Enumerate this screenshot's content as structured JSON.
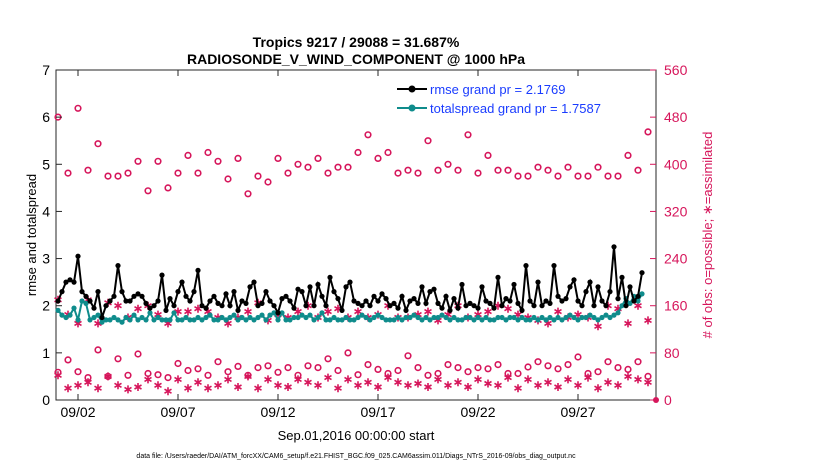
{
  "chart_data": {
    "type": "line",
    "title": "Tropics 9217 / 29088 = 31.687%",
    "subtitle": "RADIOSONDE_V_WIND_COMPONENT @ 1000 hPa",
    "xlabel": "Sep.01,2016 00:00:00 start",
    "ylabel_left": "rmse and totalspread",
    "ylabel_right": "# of obs: o=possible; ∗=assimilated",
    "footer": "data file: /Users/raeder/DAI/ATM_forcXX/CAM6_setup/f.e21.FHIST_BGC.f09_025.CAM6assim.011/Diags_NTrS_2016-09/obs_diag_output.nc",
    "xlim": [
      0.4,
      30.4
    ],
    "ylim_left": [
      0,
      7
    ],
    "ylim_right": [
      0,
      560
    ],
    "x_ticks": [
      1.5,
      6.5,
      11.5,
      16.5,
      21.5,
      26.5
    ],
    "x_tick_labels": [
      "09/02",
      "09/07",
      "09/12",
      "09/17",
      "09/22",
      "09/27"
    ],
    "y_ticks_left": [
      0,
      1,
      2,
      3,
      4,
      5,
      6,
      7
    ],
    "y_ticks_right": [
      0,
      80,
      160,
      240,
      320,
      400,
      480,
      560
    ],
    "colors": {
      "rmse": "#000000",
      "totalspread": "#0f8c8c",
      "obs": "#d6165b",
      "legend_text": "#1a3cff"
    },
    "legend": [
      {
        "label": "rmse grand pr = 2.1769",
        "series": "rmse"
      },
      {
        "label": "totalspread grand pr = 1.7587",
        "series": "totalspread"
      }
    ],
    "series": [
      {
        "name": "rmse",
        "axis": "left",
        "values": [
          2.1,
          2.3,
          2.5,
          2.55,
          2.5,
          3.05,
          2.3,
          2.2,
          2.1,
          1.95,
          2.3,
          1.75,
          2.0,
          2.1,
          2.2,
          2.85,
          2.3,
          2.1,
          2.1,
          2.2,
          2.25,
          2.2,
          2.05,
          1.95,
          2.0,
          2.1,
          2.65,
          1.9,
          2.15,
          2.0,
          2.3,
          2.5,
          2.2,
          2.1,
          2.3,
          2.75,
          2.0,
          1.95,
          2.1,
          2.2,
          2.05,
          2.0,
          2.25,
          2.0,
          2.3,
          1.9,
          2.1,
          2.05,
          2.4,
          2.5,
          2.0,
          2.05,
          2.3,
          2.1,
          2.0,
          1.85,
          2.15,
          2.2,
          2.1,
          1.95,
          2.35,
          2.3,
          2.0,
          2.4,
          2.0,
          2.45,
          2.2,
          2.0,
          2.6,
          2.3,
          2.15,
          1.9,
          2.4,
          2.5,
          2.1,
          2.05,
          2.0,
          2.1,
          2.0,
          2.2,
          2.1,
          2.25,
          2.15,
          2.0,
          2.05,
          1.95,
          2.2,
          1.9,
          2.1,
          2.15,
          2.05,
          2.4,
          2.05,
          2.3,
          2.35,
          2.05,
          1.95,
          2.2,
          1.9,
          2.15,
          1.95,
          2.45,
          2.0,
          2.05,
          2.0,
          1.95,
          2.4,
          2.1,
          2.05,
          1.95,
          2.6,
          2.0,
          2.15,
          2.1,
          2.45,
          2.05,
          1.9,
          2.85,
          2.1,
          2.0,
          2.5,
          2.0,
          2.1,
          2.05,
          2.85,
          2.2,
          2.1,
          2.15,
          2.4,
          2.55,
          2.1,
          2.0,
          2.3,
          2.5,
          2.0,
          2.4,
          2.1,
          2.0,
          2.3,
          3.25,
          2.15,
          2.6,
          2.0,
          2.4,
          2.1,
          2.2,
          2.7
        ],
        "note": "sampled every 0.2 day from x=0.5"
      },
      {
        "name": "totalspread",
        "axis": "left",
        "values": [
          1.9,
          1.8,
          1.75,
          1.8,
          1.95,
          1.7,
          2.1,
          2.05,
          1.7,
          1.75,
          1.8,
          1.65,
          1.7,
          1.7,
          1.75,
          1.7,
          1.65,
          1.75,
          1.7,
          1.8,
          1.7,
          1.75,
          1.7,
          1.85,
          1.7,
          1.75,
          1.7,
          1.7,
          1.7,
          1.85,
          1.7,
          1.7,
          1.75,
          1.7,
          1.7,
          1.75,
          1.7,
          1.75,
          1.8,
          1.7,
          1.7,
          1.75,
          1.7,
          1.75,
          1.8,
          1.7,
          1.75,
          1.7,
          1.75,
          1.7,
          1.75,
          1.8,
          1.7,
          1.8,
          1.85,
          1.7,
          1.85,
          1.7,
          1.7,
          1.75,
          1.75,
          1.8,
          1.75,
          1.8,
          1.7,
          1.75,
          1.85,
          1.7,
          1.7,
          1.75,
          1.7,
          1.7,
          1.75,
          1.7,
          1.7,
          1.75,
          1.8,
          1.75,
          1.7,
          1.75,
          1.8,
          1.75,
          1.7,
          1.7,
          1.7,
          1.75,
          1.7,
          1.75,
          1.75,
          1.8,
          1.75,
          1.7,
          1.75,
          1.7,
          1.75,
          1.75,
          1.8,
          1.75,
          1.7,
          1.75,
          1.7,
          1.7,
          1.75,
          1.75,
          1.7,
          1.75,
          1.7,
          1.75,
          1.7,
          1.7,
          1.75,
          1.75,
          1.7,
          1.75,
          1.75,
          1.7,
          1.75,
          1.7,
          1.7,
          1.75,
          1.7,
          1.75,
          1.7,
          1.75,
          1.7,
          1.75,
          1.7,
          1.75,
          1.8,
          1.75,
          1.7,
          1.75,
          1.75,
          1.8,
          1.75,
          1.7,
          1.75,
          1.8,
          1.75,
          1.8,
          1.85,
          2.0,
          2.15,
          2.05,
          2.2,
          2.1,
          2.25
        ]
      },
      {
        "name": "obs_possible_high",
        "axis": "right",
        "marker": "o",
        "values": [
          480,
          385,
          495,
          390,
          435,
          380,
          380,
          385,
          405,
          355,
          405,
          360,
          385,
          415,
          385,
          420,
          405,
          375,
          410,
          350,
          380,
          370,
          410,
          385,
          400,
          395,
          410,
          385,
          395,
          395,
          420,
          450,
          410,
          420,
          385,
          390,
          385,
          440,
          390,
          400,
          390,
          450,
          385,
          415,
          390,
          390,
          380,
          380,
          395,
          390,
          380,
          395,
          380,
          380,
          395,
          380,
          380,
          415,
          390,
          455
        ]
      },
      {
        "name": "obs_assimilated_high",
        "axis": "right",
        "marker": "*",
        "values": [
          170,
          145,
          130,
          170,
          130,
          165,
          160,
          140,
          155,
          160,
          145,
          130,
          150,
          150,
          155,
          150,
          140,
          130,
          140,
          150,
          165,
          135,
          145,
          140,
          150,
          160,
          140,
          150,
          155,
          140,
          150,
          140,
          145,
          160,
          140,
          140,
          145,
          150,
          135,
          145,
          160,
          140,
          145,
          150,
          160,
          155,
          145,
          140,
          135,
          130,
          150,
          140,
          145,
          140,
          125,
          160,
          155,
          130,
          160,
          135
        ]
      },
      {
        "name": "obs_possible_low",
        "axis": "right",
        "marker": "o",
        "values": [
          47,
          68,
          48,
          38,
          85,
          40,
          70,
          42,
          78,
          45,
          43,
          38,
          62,
          50,
          53,
          42,
          65,
          48,
          57,
          42,
          55,
          58,
          47,
          55,
          42,
          58,
          55,
          70,
          50,
          80,
          43,
          60,
          52,
          45,
          50,
          75,
          55,
          42,
          45,
          60,
          55,
          48,
          55,
          53,
          60,
          45,
          45,
          56,
          65,
          58,
          53,
          60,
          73,
          45,
          48,
          65,
          55,
          52,
          65,
          40
        ]
      },
      {
        "name": "obs_assimilated_low",
        "axis": "right",
        "marker": "*",
        "values": [
          42,
          20,
          25,
          30,
          20,
          40,
          25,
          18,
          22,
          35,
          25,
          15,
          35,
          20,
          30,
          20,
          25,
          35,
          22,
          40,
          20,
          35,
          25,
          22,
          35,
          30,
          25,
          38,
          20,
          35,
          25,
          30,
          22,
          38,
          30,
          25,
          28,
          22,
          35,
          25,
          30,
          22,
          35,
          28,
          25,
          38,
          20,
          35,
          25,
          30,
          22,
          35,
          25,
          38,
          20,
          30,
          25,
          40,
          35,
          30
        ]
      }
    ]
  }
}
